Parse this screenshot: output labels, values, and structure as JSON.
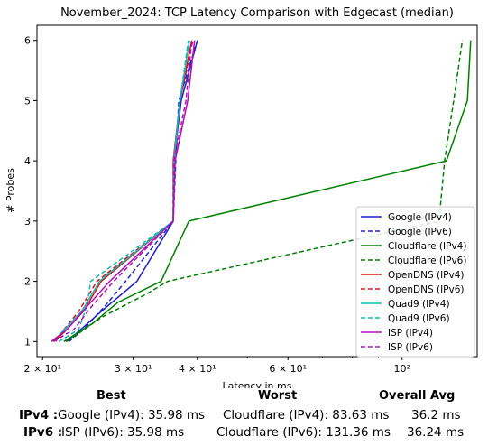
{
  "chart_data": {
    "type": "line",
    "title": "November_2024: TCP Latency Comparison with Edgecast (median)",
    "xlabel": "Latency in ms",
    "ylabel": "# Probes",
    "xscale": "log",
    "xlim": [
      19.5,
      140
    ],
    "ylim": [
      0.75,
      6.25
    ],
    "x_ticks": [
      {
        "value": 20,
        "label": "2 × 10¹"
      },
      {
        "value": 30,
        "label": "3 × 10¹"
      },
      {
        "value": 40,
        "label": "4 × 10¹"
      },
      {
        "value": 60,
        "label": "6 × 10¹"
      },
      {
        "value": 100,
        "label": "10²"
      }
    ],
    "y_ticks": [
      1,
      2,
      3,
      4,
      5,
      6
    ],
    "grid": false,
    "legend_position": "lower-right",
    "series": [
      {
        "name": "Google (IPv4)",
        "color": "#1f1fcc",
        "dash": "solid",
        "points": [
          [
            22.2,
            1
          ],
          [
            23.0,
            1.1
          ],
          [
            26.0,
            1.5
          ],
          [
            30.5,
            2
          ],
          [
            35.9,
            3
          ],
          [
            35.98,
            4
          ],
          [
            37.2,
            5
          ],
          [
            40.0,
            6
          ]
        ]
      },
      {
        "name": "Google (IPv6)",
        "color": "#1f1fcc",
        "dash": "dashed",
        "points": [
          [
            22.5,
            1
          ],
          [
            24.0,
            1.2
          ],
          [
            26.5,
            1.6
          ],
          [
            29.0,
            2
          ],
          [
            35.9,
            3
          ],
          [
            36.3,
            4
          ],
          [
            36.8,
            5
          ],
          [
            40.0,
            6
          ]
        ]
      },
      {
        "name": "Cloudflare (IPv4)",
        "color": "#008000",
        "dash": "solid",
        "points": [
          [
            22.0,
            1
          ],
          [
            25.0,
            1.3
          ],
          [
            28.0,
            1.65
          ],
          [
            34.0,
            2
          ],
          [
            38.5,
            3
          ],
          [
            122.0,
            4
          ],
          [
            134.0,
            5
          ],
          [
            136.0,
            6
          ]
        ]
      },
      {
        "name": "Cloudflare (IPv6)",
        "color": "#008000",
        "dash": "dashed",
        "points": [
          [
            22.3,
            1
          ],
          [
            26.0,
            1.4
          ],
          [
            32.0,
            1.8
          ],
          [
            35.0,
            2
          ],
          [
            118.0,
            3
          ],
          [
            121.0,
            4
          ],
          [
            126.0,
            5
          ],
          [
            131.0,
            6
          ]
        ]
      },
      {
        "name": "OpenDNS (IPv4)",
        "color": "#e01010",
        "dash": "solid",
        "points": [
          [
            21.0,
            1
          ],
          [
            22.0,
            1.15
          ],
          [
            24.0,
            1.5
          ],
          [
            26.0,
            2
          ],
          [
            35.9,
            3
          ],
          [
            35.9,
            4
          ],
          [
            37.0,
            5
          ],
          [
            39.0,
            6
          ]
        ]
      },
      {
        "name": "OpenDNS (IPv6)",
        "color": "#e01010",
        "dash": "dashed",
        "points": [
          [
            21.2,
            1
          ],
          [
            22.0,
            1.2
          ],
          [
            23.5,
            1.5
          ],
          [
            25.5,
            2
          ],
          [
            35.9,
            3
          ],
          [
            35.9,
            4
          ],
          [
            37.0,
            5
          ],
          [
            39.2,
            6
          ]
        ]
      },
      {
        "name": "Quad9 (IPv4)",
        "color": "#10b8b8",
        "dash": "solid",
        "points": [
          [
            20.8,
            1
          ],
          [
            21.5,
            1.1
          ],
          [
            23.8,
            1.5
          ],
          [
            25.8,
            2
          ],
          [
            35.9,
            3
          ],
          [
            36.0,
            4
          ],
          [
            37.0,
            5
          ],
          [
            38.6,
            6
          ]
        ]
      },
      {
        "name": "Quad9 (IPv6)",
        "color": "#10b8b8",
        "dash": "dashed",
        "points": [
          [
            21.5,
            1
          ],
          [
            23.5,
            1.2
          ],
          [
            24.4,
            1.6
          ],
          [
            24.8,
            2
          ],
          [
            35.9,
            3
          ],
          [
            36.0,
            4
          ],
          [
            37.0,
            5
          ],
          [
            38.4,
            6
          ]
        ]
      },
      {
        "name": "ISP (IPv4)",
        "color": "#b010b8",
        "dash": "solid",
        "points": [
          [
            20.8,
            1
          ],
          [
            22.3,
            1.2
          ],
          [
            24.5,
            1.6
          ],
          [
            27.0,
            2
          ],
          [
            35.9,
            3
          ],
          [
            36.2,
            4
          ],
          [
            38.3,
            5
          ],
          [
            39.5,
            6
          ]
        ]
      },
      {
        "name": "ISP (IPv6)",
        "color": "#b010b8",
        "dash": "dashed",
        "points": [
          [
            21.0,
            1
          ],
          [
            23.0,
            1.2
          ],
          [
            25.0,
            1.6
          ],
          [
            27.5,
            2
          ],
          [
            35.9,
            3
          ],
          [
            35.98,
            4
          ],
          [
            38.0,
            5
          ],
          [
            39.0,
            6
          ]
        ]
      }
    ]
  },
  "stats": {
    "headers": {
      "best": "Best",
      "worst": "Worst",
      "avg": "Overall Avg"
    },
    "rows": [
      {
        "label": "IPv4 :",
        "best": "Google (IPv4): 35.98 ms",
        "worst": "Cloudflare (IPv4): 83.63 ms",
        "avg": "36.2 ms"
      },
      {
        "label": "IPv6 :",
        "best": "ISP (IPv6): 35.98 ms",
        "worst": "Cloudflare (IPv6): 131.36 ms",
        "avg": "36.24 ms"
      }
    ]
  }
}
